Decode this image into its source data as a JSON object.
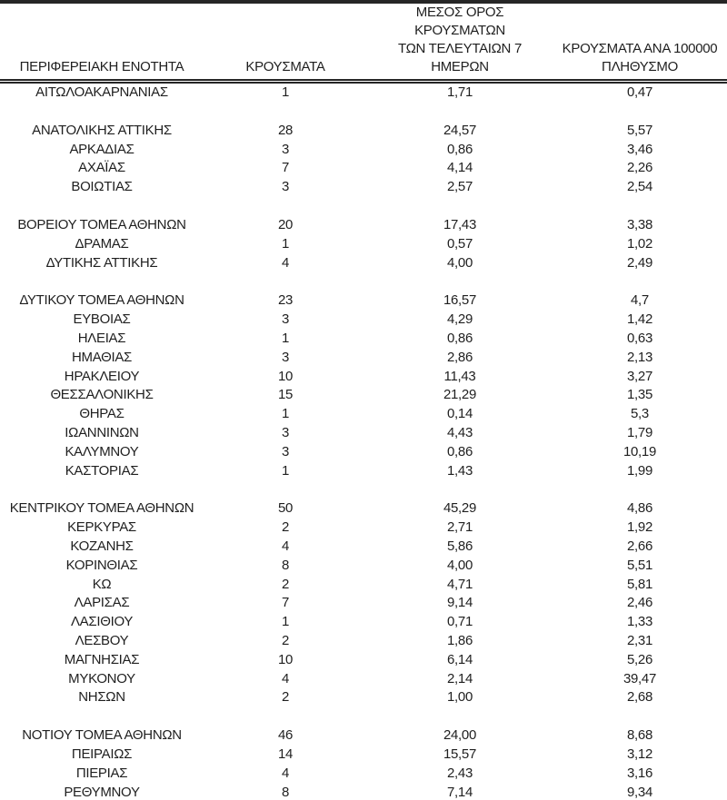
{
  "page": {
    "background": "#ffffff",
    "text_color": "#1f1f1f",
    "rule_color": "#262626"
  },
  "table": {
    "columns": [
      {
        "label": "ΠΕΡΙΦΕΡΕΙΑΚΗ ΕΝΟΤΗΤΑ"
      },
      {
        "label": "ΚΡΟΥΣΜΑΤΑ"
      },
      {
        "label": "ΜΕΣΟΣ ΟΡΟΣ ΚΡΟΥΣΜΑΤΩΝ\nΤΩΝ ΤΕΛΕΥΤΑΙΩΝ 7\nΗΜΕΡΩΝ"
      },
      {
        "label": "ΚΡΟΥΣΜΑΤΑ ΑΝΑ 100000\nΠΛΗΘΥΣΜΟ"
      }
    ],
    "groups": [
      [
        {
          "region": "ΑΙΤΩΛΟΑΚΑΡΝΑΝΙΑΣ",
          "cases": "1",
          "avg7": "1,71",
          "per100k": "0,47"
        }
      ],
      [
        {
          "region": "ΑΝΑΤΟΛΙΚΗΣ ΑΤΤΙΚΗΣ",
          "cases": "28",
          "avg7": "24,57",
          "per100k": "5,57"
        },
        {
          "region": "ΑΡΚΑΔΙΑΣ",
          "cases": "3",
          "avg7": "0,86",
          "per100k": "3,46"
        },
        {
          "region": "ΑΧΑΪΑΣ",
          "cases": "7",
          "avg7": "4,14",
          "per100k": "2,26"
        },
        {
          "region": "ΒΟΙΩΤΙΑΣ",
          "cases": "3",
          "avg7": "2,57",
          "per100k": "2,54"
        }
      ],
      [
        {
          "region": "ΒΟΡΕΙΟΥ ΤΟΜΕΑ ΑΘΗΝΩΝ",
          "cases": "20",
          "avg7": "17,43",
          "per100k": "3,38"
        },
        {
          "region": "ΔΡΑΜΑΣ",
          "cases": "1",
          "avg7": "0,57",
          "per100k": "1,02"
        },
        {
          "region": "ΔΥΤΙΚΗΣ ΑΤΤΙΚΗΣ",
          "cases": "4",
          "avg7": "4,00",
          "per100k": "2,49"
        }
      ],
      [
        {
          "region": "ΔΥΤΙΚΟΥ ΤΟΜΕΑ ΑΘΗΝΩΝ",
          "cases": "23",
          "avg7": "16,57",
          "per100k": "4,7"
        },
        {
          "region": "ΕΥΒΟΙΑΣ",
          "cases": "3",
          "avg7": "4,29",
          "per100k": "1,42"
        },
        {
          "region": "ΗΛΕΙΑΣ",
          "cases": "1",
          "avg7": "0,86",
          "per100k": "0,63"
        },
        {
          "region": "ΗΜΑΘΙΑΣ",
          "cases": "3",
          "avg7": "2,86",
          "per100k": "2,13"
        },
        {
          "region": "ΗΡΑΚΛΕΙΟΥ",
          "cases": "10",
          "avg7": "11,43",
          "per100k": "3,27"
        },
        {
          "region": "ΘΕΣΣΑΛΟΝΙΚΗΣ",
          "cases": "15",
          "avg7": "21,29",
          "per100k": "1,35"
        },
        {
          "region": "ΘΗΡΑΣ",
          "cases": "1",
          "avg7": "0,14",
          "per100k": "5,3"
        },
        {
          "region": "ΙΩΑΝΝΙΝΩΝ",
          "cases": "3",
          "avg7": "4,43",
          "per100k": "1,79"
        },
        {
          "region": "ΚΑΛΥΜΝΟΥ",
          "cases": "3",
          "avg7": "0,86",
          "per100k": "10,19"
        },
        {
          "region": "ΚΑΣΤΟΡΙΑΣ",
          "cases": "1",
          "avg7": "1,43",
          "per100k": "1,99"
        }
      ],
      [
        {
          "region": "ΚΕΝΤΡΙΚΟΥ ΤΟΜΕΑ ΑΘΗΝΩΝ",
          "cases": "50",
          "avg7": "45,29",
          "per100k": "4,86"
        },
        {
          "region": "ΚΕΡΚΥΡΑΣ",
          "cases": "2",
          "avg7": "2,71",
          "per100k": "1,92"
        },
        {
          "region": "ΚΟΖΑΝΗΣ",
          "cases": "4",
          "avg7": "5,86",
          "per100k": "2,66"
        },
        {
          "region": "ΚΟΡΙΝΘΙΑΣ",
          "cases": "8",
          "avg7": "4,00",
          "per100k": "5,51"
        },
        {
          "region": "ΚΩ",
          "cases": "2",
          "avg7": "4,71",
          "per100k": "5,81"
        },
        {
          "region": "ΛΑΡΙΣΑΣ",
          "cases": "7",
          "avg7": "9,14",
          "per100k": "2,46"
        },
        {
          "region": "ΛΑΣΙΘΙΟΥ",
          "cases": "1",
          "avg7": "0,71",
          "per100k": "1,33"
        },
        {
          "region": "ΛΕΣΒΟΥ",
          "cases": "2",
          "avg7": "1,86",
          "per100k": "2,31"
        },
        {
          "region": "ΜΑΓΝΗΣΙΑΣ",
          "cases": "10",
          "avg7": "6,14",
          "per100k": "5,26"
        },
        {
          "region": "ΜΥΚΟΝΟΥ",
          "cases": "4",
          "avg7": "2,14",
          "per100k": "39,47"
        },
        {
          "region": "ΝΗΣΩΝ",
          "cases": "2",
          "avg7": "1,00",
          "per100k": "2,68"
        }
      ],
      [
        {
          "region": "ΝΟΤΙΟΥ ΤΟΜΕΑ ΑΘΗΝΩΝ",
          "cases": "46",
          "avg7": "24,00",
          "per100k": "8,68"
        },
        {
          "region": "ΠΕΙΡΑΙΩΣ",
          "cases": "14",
          "avg7": "15,57",
          "per100k": "3,12"
        },
        {
          "region": "ΠΙΕΡΙΑΣ",
          "cases": "4",
          "avg7": "2,43",
          "per100k": "3,16"
        },
        {
          "region": "ΡΕΘΥΜΝΟΥ",
          "cases": "8",
          "avg7": "7,14",
          "per100k": "9,34"
        }
      ]
    ]
  }
}
